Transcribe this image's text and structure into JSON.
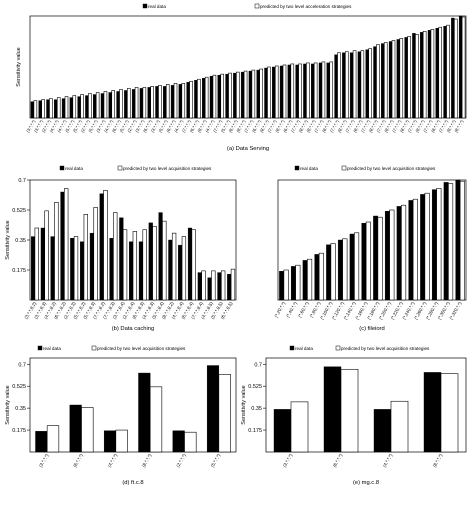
{
  "chart_data": [
    {
      "type": "bar",
      "caption": "(a) Data Serving",
      "ylabel": "Sensitivity value",
      "legend": [
        "real data",
        "predicted by two level acceleration strategies"
      ],
      "yticks": [],
      "ylim": [
        0,
        1.0
      ],
      "categories": [
        "(3,*,*,*)",
        "(3,*,*,*)",
        "(2,*,*,*)",
        "(4,*,*,*)",
        "(4,*,*,*)",
        "(5,*,*,*)",
        "(5,*,*,*)",
        "(2,*,*,*)",
        "(5,*,*,*)",
        "(3,*,*,*)",
        "(4,*,*,*)",
        "(6,*,*,*)",
        "(5,*,*,*)",
        "(2,*,*,*)",
        "(3,*,*,*)",
        "(6,*,*,*)",
        "(3,*,*,*)",
        "(5,*,*,*)",
        "(6,*,*,*)",
        "(4,*,*,*)",
        "(7,*,*,*)",
        "(6,*,*,*)",
        "(8,*,*,*)",
        "(4,*,*,*)",
        "(7,*,*,*)",
        "(5,*,*,*)",
        "(6,*,*,*)",
        "(8,*,*,*)",
        "(7,*,*,*)",
        "(6,*,*,*)",
        "(8,*,*,*)",
        "(7,*,*,*)",
        "(8,*,*,*)",
        "(6,*,*,*)",
        "(7,*,*,*)",
        "(8,*,*,*)",
        "(8,*,*,*)",
        "(7,*,*,*)",
        "(8,*,*,*)",
        "(7,*,*,*)",
        "(8,*,*,*)",
        "(7,*,*,*)",
        "(8,*,*,*)",
        "(7,*,*,*)",
        "(8,*,*,*)",
        "(7,*,*,*)",
        "(8,*,*,*)",
        "(7,*,*,*)",
        "(8,*,*,*)",
        "(7,*,*,*)",
        "(8,*,*,*)",
        "(7,*,*,*)",
        "(8,*,*,*)",
        "(7,*,*,*)",
        "(8,*,*,*)",
        "(8,*,*,*)"
      ],
      "series": [
        {
          "name": "real data",
          "values": [
            0.16,
            0.17,
            0.18,
            0.18,
            0.19,
            0.2,
            0.21,
            0.22,
            0.23,
            0.24,
            0.25,
            0.26,
            0.27,
            0.28,
            0.29,
            0.3,
            0.31,
            0.31,
            0.32,
            0.33,
            0.35,
            0.37,
            0.39,
            0.41,
            0.42,
            0.43,
            0.44,
            0.45,
            0.46,
            0.47,
            0.49,
            0.5,
            0.51,
            0.52,
            0.52,
            0.53,
            0.53,
            0.54,
            0.54,
            0.62,
            0.64,
            0.64,
            0.65,
            0.67,
            0.7,
            0.73,
            0.75,
            0.77,
            0.79,
            0.83,
            0.84,
            0.86,
            0.88,
            0.9,
            0.98,
            1.0
          ]
        },
        {
          "name": "predicted by two level acceleration strategies",
          "values": [
            0.17,
            0.18,
            0.19,
            0.2,
            0.21,
            0.22,
            0.23,
            0.24,
            0.25,
            0.26,
            0.27,
            0.28,
            0.29,
            0.3,
            0.3,
            0.31,
            0.32,
            0.33,
            0.34,
            0.34,
            0.36,
            0.38,
            0.4,
            0.42,
            0.43,
            0.44,
            0.45,
            0.46,
            0.47,
            0.48,
            0.5,
            0.51,
            0.52,
            0.53,
            0.53,
            0.54,
            0.54,
            0.55,
            0.55,
            0.64,
            0.65,
            0.66,
            0.66,
            0.68,
            0.72,
            0.74,
            0.76,
            0.78,
            0.8,
            0.82,
            0.85,
            0.87,
            0.89,
            0.91,
            0.97,
            0.99
          ]
        }
      ]
    },
    {
      "type": "bar",
      "caption": "(b) Data caching",
      "ylabel": "Sensitivity value",
      "legend": [
        "real data",
        "predicted by two level acquisition strategies"
      ],
      "yticks": [
        "0.175",
        "0.35",
        "0.525",
        "0.7"
      ],
      "ylim": [
        0,
        0.7
      ],
      "categories": [
        "(3,*,*,8,2)",
        "(3,*,*,8,3)",
        "(4,*,*,8,2)",
        "(6,*,*,8,2)",
        "(2,*,*,8,3)",
        "(5,*,*,8,2)",
        "(5,*,*,8,3)",
        "(7,*,*,8,2)",
        "(7,*,*,8,3)",
        "(3,*,*,8,4)",
        "(2,*,*,8,4)",
        "(6,*,*,8,3)",
        "(4,*,*,8,3)",
        "(5,*,*,8,4)",
        "(8,*,*,8,2)",
        "(4,*,*,8,4)",
        "(6,*,*,8,4)",
        "(7,*,*,8,4)",
        "(4,*,*,8,5)",
        "(5,*,*,8,5)",
        "(6,*,*,8,5)"
      ],
      "series": [
        {
          "name": "real data",
          "values": [
            0.37,
            0.42,
            0.37,
            0.63,
            0.36,
            0.34,
            0.39,
            0.62,
            0.36,
            0.48,
            0.34,
            0.34,
            0.45,
            0.51,
            0.35,
            0.32,
            0.42,
            0.16,
            0.13,
            0.16,
            0.15
          ]
        },
        {
          "name": "predicted by two level acquisition strategies",
          "values": [
            0.42,
            0.52,
            0.57,
            0.65,
            0.37,
            0.5,
            0.54,
            0.64,
            0.51,
            0.41,
            0.4,
            0.41,
            0.43,
            0.46,
            0.39,
            0.37,
            0.41,
            0.17,
            0.17,
            0.17,
            0.18
          ]
        }
      ]
    },
    {
      "type": "bar",
      "caption": "(c) fileiord",
      "ylabel": "",
      "legend": [
        "real data",
        "predicted by two level acquisition strategies"
      ],
      "yticks": [],
      "ylim": [
        0,
        1.0
      ],
      "categories": [
        "(*,20,*,*)",
        "(*,40,*,*)",
        "(*,60,*,*)",
        "(*,80,*,*)",
        "(*,100,*,*)",
        "(*,120,*,*)",
        "(*,140,*,*)",
        "(*,160,*,*)",
        "(*,180,*,*)",
        "(*,200,*,*)",
        "(*,220,*,*)",
        "(*,240,*,*)",
        "(*,260,*,*)",
        "(*,280,*,*)",
        "(*,300,*,*)",
        "(*,320,*,*)"
      ],
      "series": [
        {
          "name": "real data",
          "values": [
            0.24,
            0.28,
            0.33,
            0.38,
            0.46,
            0.5,
            0.55,
            0.64,
            0.7,
            0.74,
            0.78,
            0.83,
            0.88,
            0.92,
            0.98,
            1.0
          ]
        },
        {
          "name": "predicted by two level acquisition strategies",
          "values": [
            0.25,
            0.29,
            0.34,
            0.39,
            0.47,
            0.51,
            0.56,
            0.65,
            0.69,
            0.75,
            0.79,
            0.84,
            0.89,
            0.93,
            0.97,
            0.99
          ]
        }
      ]
    },
    {
      "type": "bar",
      "caption": "(d) ft.c.8",
      "ylabel": "Sensitivity value",
      "legend": [
        "real data",
        "predicted by two level acquisition strategies"
      ],
      "yticks": [
        "0.175",
        "0.35",
        "0.525",
        "0.7"
      ],
      "ylim": [
        0,
        0.75
      ],
      "categories": [
        "(3,*,*,*)",
        "(6,*,*,*)",
        "(4,*,*,*)",
        "(8,*,*,*)",
        "(2,*,*,*)",
        "(5,*,*,*)"
      ],
      "series": [
        {
          "name": "real data",
          "values": [
            0.165,
            0.375,
            0.17,
            0.63,
            0.17,
            0.69
          ]
        },
        {
          "name": "predicted by two level acquisition strategies",
          "values": [
            0.21,
            0.355,
            0.175,
            0.52,
            0.158,
            0.62
          ]
        }
      ]
    },
    {
      "type": "bar",
      "caption": "(e) mg.c.8",
      "ylabel": "Sensitivity value",
      "legend": [
        "real data",
        "predicted by two level acquisition strategies"
      ],
      "yticks": [
        "0.175",
        "0.35",
        "0.525",
        "0.7"
      ],
      "ylim": [
        0,
        0.75
      ],
      "categories": [
        "(3,*,*,*)",
        "(6,*,*,*)",
        "(4,*,*,*)",
        "(8,*,*,*)"
      ],
      "series": [
        {
          "name": "real data",
          "values": [
            0.34,
            0.68,
            0.34,
            0.635
          ]
        },
        {
          "name": "predicted by two level acquisition strategies",
          "values": [
            0.4,
            0.66,
            0.405,
            0.625
          ]
        }
      ]
    }
  ]
}
